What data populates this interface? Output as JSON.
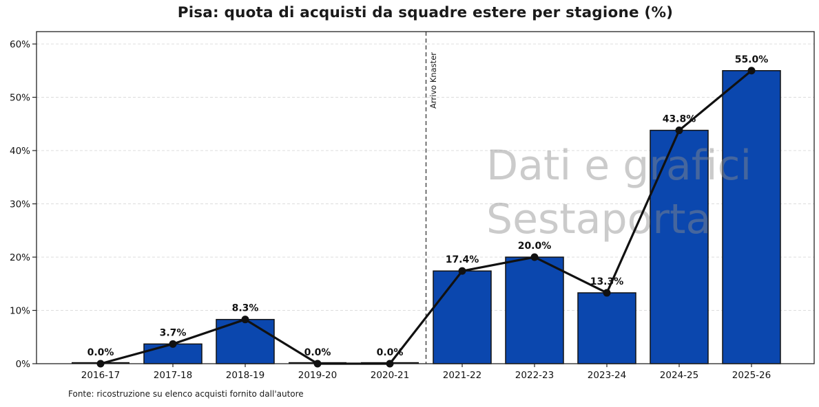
{
  "title": "Pisa: quota di acquisti da squadre estere per stagione (%)",
  "footnote": "Fonte: ricostruzione su elenco acquisti fornito dall'autore",
  "watermark": {
    "line1": "Dati e grafici",
    "line2": "Sestaporta"
  },
  "annotation": {
    "label": "Arrivo Knaster",
    "position_between_categories": [
      "2020-21",
      "2021-22"
    ]
  },
  "chart_data": {
    "type": "bar",
    "overlay": "line",
    "title": "Pisa: quota di acquisti da squadre estere per stagione (%)",
    "categories": [
      "2016-17",
      "2017-18",
      "2018-19",
      "2019-20",
      "2020-21",
      "2021-22",
      "2022-23",
      "2023-24",
      "2024-25",
      "2025-26"
    ],
    "values": [
      0.0,
      3.7,
      8.3,
      0.0,
      0.0,
      17.4,
      20.0,
      13.3,
      43.8,
      55.0
    ],
    "value_labels": [
      "0.0%",
      "3.7%",
      "8.3%",
      "0.0%",
      "0.0%",
      "17.4%",
      "20.0%",
      "13.3%",
      "43.8%",
      "55.0%"
    ],
    "y_tick_labels": [
      "0%",
      "10%",
      "20%",
      "30%",
      "40%",
      "50%",
      "60%"
    ],
    "y_tick_values": [
      0,
      10,
      20,
      30,
      40,
      50,
      60
    ],
    "ylim": [
      0,
      62.3
    ],
    "xlabel": "",
    "ylabel": "",
    "grid": "horizontal-dashed",
    "legend": "none",
    "vline_after_category_index": 4,
    "colors": {
      "bar_fill": "#0b47ae",
      "bar_edge": "#111111",
      "line": "#111111",
      "marker": "#111111",
      "grid": "#dcdcdc",
      "spine": "#222222",
      "vline": "#4a4a4a",
      "tick_text": "#111111",
      "watermark": "rgba(140,140,140,0.45)"
    }
  }
}
